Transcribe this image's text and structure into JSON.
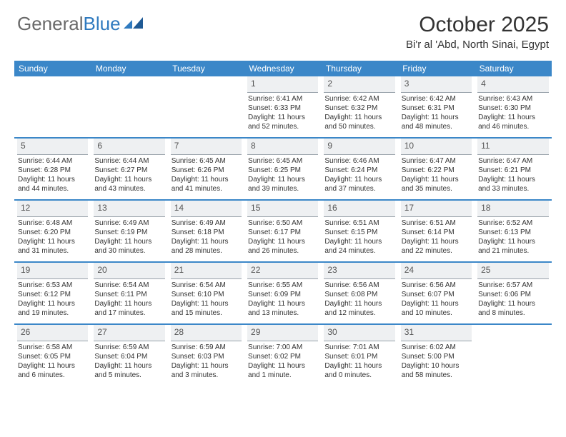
{
  "logo": {
    "text1": "General",
    "text2": "Blue"
  },
  "title": "October 2025",
  "location": "Bi'r al 'Abd, North Sinai, Egypt",
  "colors": {
    "header_bg": "#3b87c8",
    "header_text": "#ffffff",
    "daynum_bg": "#eef0f2",
    "daynum_border": "#9aa3ab",
    "page_bg": "#ffffff",
    "text": "#333333",
    "logo_gray": "#6a6a6a",
    "logo_blue": "#2f7abf"
  },
  "day_headers": [
    "Sunday",
    "Monday",
    "Tuesday",
    "Wednesday",
    "Thursday",
    "Friday",
    "Saturday"
  ],
  "weeks": [
    [
      null,
      null,
      null,
      {
        "n": "1",
        "sr": "6:41 AM",
        "ss": "6:33 PM",
        "dl": "11 hours and 52 minutes."
      },
      {
        "n": "2",
        "sr": "6:42 AM",
        "ss": "6:32 PM",
        "dl": "11 hours and 50 minutes."
      },
      {
        "n": "3",
        "sr": "6:42 AM",
        "ss": "6:31 PM",
        "dl": "11 hours and 48 minutes."
      },
      {
        "n": "4",
        "sr": "6:43 AM",
        "ss": "6:30 PM",
        "dl": "11 hours and 46 minutes."
      }
    ],
    [
      {
        "n": "5",
        "sr": "6:44 AM",
        "ss": "6:28 PM",
        "dl": "11 hours and 44 minutes."
      },
      {
        "n": "6",
        "sr": "6:44 AM",
        "ss": "6:27 PM",
        "dl": "11 hours and 43 minutes."
      },
      {
        "n": "7",
        "sr": "6:45 AM",
        "ss": "6:26 PM",
        "dl": "11 hours and 41 minutes."
      },
      {
        "n": "8",
        "sr": "6:45 AM",
        "ss": "6:25 PM",
        "dl": "11 hours and 39 minutes."
      },
      {
        "n": "9",
        "sr": "6:46 AM",
        "ss": "6:24 PM",
        "dl": "11 hours and 37 minutes."
      },
      {
        "n": "10",
        "sr": "6:47 AM",
        "ss": "6:22 PM",
        "dl": "11 hours and 35 minutes."
      },
      {
        "n": "11",
        "sr": "6:47 AM",
        "ss": "6:21 PM",
        "dl": "11 hours and 33 minutes."
      }
    ],
    [
      {
        "n": "12",
        "sr": "6:48 AM",
        "ss": "6:20 PM",
        "dl": "11 hours and 31 minutes."
      },
      {
        "n": "13",
        "sr": "6:49 AM",
        "ss": "6:19 PM",
        "dl": "11 hours and 30 minutes."
      },
      {
        "n": "14",
        "sr": "6:49 AM",
        "ss": "6:18 PM",
        "dl": "11 hours and 28 minutes."
      },
      {
        "n": "15",
        "sr": "6:50 AM",
        "ss": "6:17 PM",
        "dl": "11 hours and 26 minutes."
      },
      {
        "n": "16",
        "sr": "6:51 AM",
        "ss": "6:15 PM",
        "dl": "11 hours and 24 minutes."
      },
      {
        "n": "17",
        "sr": "6:51 AM",
        "ss": "6:14 PM",
        "dl": "11 hours and 22 minutes."
      },
      {
        "n": "18",
        "sr": "6:52 AM",
        "ss": "6:13 PM",
        "dl": "11 hours and 21 minutes."
      }
    ],
    [
      {
        "n": "19",
        "sr": "6:53 AM",
        "ss": "6:12 PM",
        "dl": "11 hours and 19 minutes."
      },
      {
        "n": "20",
        "sr": "6:54 AM",
        "ss": "6:11 PM",
        "dl": "11 hours and 17 minutes."
      },
      {
        "n": "21",
        "sr": "6:54 AM",
        "ss": "6:10 PM",
        "dl": "11 hours and 15 minutes."
      },
      {
        "n": "22",
        "sr": "6:55 AM",
        "ss": "6:09 PM",
        "dl": "11 hours and 13 minutes."
      },
      {
        "n": "23",
        "sr": "6:56 AM",
        "ss": "6:08 PM",
        "dl": "11 hours and 12 minutes."
      },
      {
        "n": "24",
        "sr": "6:56 AM",
        "ss": "6:07 PM",
        "dl": "11 hours and 10 minutes."
      },
      {
        "n": "25",
        "sr": "6:57 AM",
        "ss": "6:06 PM",
        "dl": "11 hours and 8 minutes."
      }
    ],
    [
      {
        "n": "26",
        "sr": "6:58 AM",
        "ss": "6:05 PM",
        "dl": "11 hours and 6 minutes."
      },
      {
        "n": "27",
        "sr": "6:59 AM",
        "ss": "6:04 PM",
        "dl": "11 hours and 5 minutes."
      },
      {
        "n": "28",
        "sr": "6:59 AM",
        "ss": "6:03 PM",
        "dl": "11 hours and 3 minutes."
      },
      {
        "n": "29",
        "sr": "7:00 AM",
        "ss": "6:02 PM",
        "dl": "11 hours and 1 minute."
      },
      {
        "n": "30",
        "sr": "7:01 AM",
        "ss": "6:01 PM",
        "dl": "11 hours and 0 minutes."
      },
      {
        "n": "31",
        "sr": "6:02 AM",
        "ss": "5:00 PM",
        "dl": "10 hours and 58 minutes."
      },
      null
    ]
  ],
  "labels": {
    "sunrise": "Sunrise:",
    "sunset": "Sunset:",
    "daylight": "Daylight:"
  }
}
